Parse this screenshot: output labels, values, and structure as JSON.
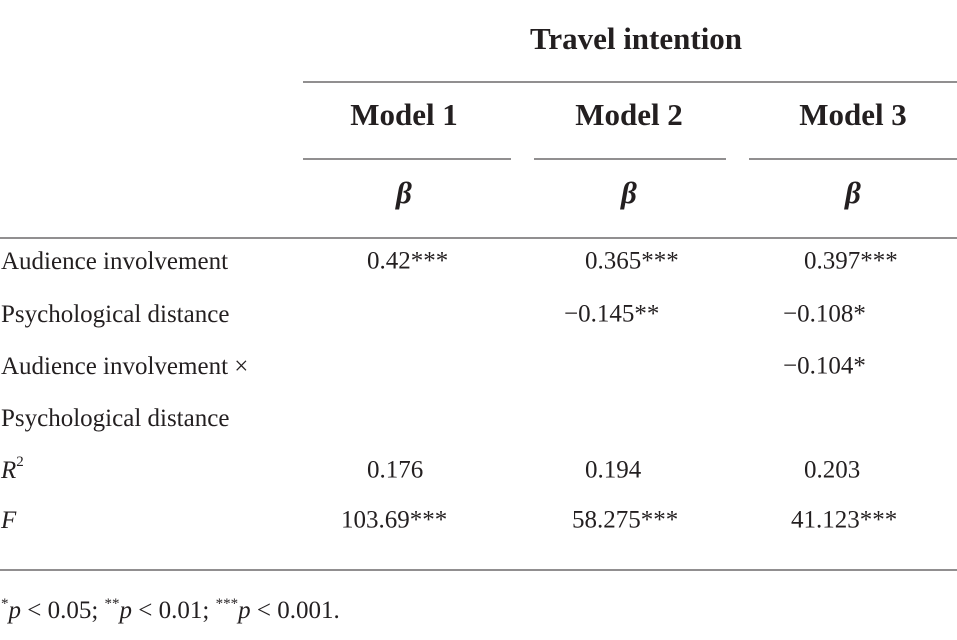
{
  "header": {
    "title": "Travel intention",
    "models": [
      "Model 1",
      "Model 2",
      "Model 3"
    ],
    "stats": [
      "β",
      "β",
      "β"
    ]
  },
  "table": {
    "rows": [
      {
        "label": "Audience involvement",
        "cells": [
          "0.42***",
          "0.365***",
          "0.397***"
        ]
      },
      {
        "label": "Psychological distance",
        "cells": [
          null,
          "−0.145**",
          "−0.108*"
        ]
      },
      {
        "label": "Audience involvement ×",
        "cells": [
          null,
          null,
          "−0.104*"
        ]
      },
      {
        "label": "Psychological distance",
        "cells": [
          null,
          null,
          null
        ]
      },
      {
        "label": "R",
        "label_sup": "2",
        "label_italic": true,
        "cells": [
          "0.176",
          "0.194",
          "0.203"
        ]
      },
      {
        "label": "F",
        "label_italic": true,
        "cells": [
          "103.69***",
          "58.275***",
          "41.123***"
        ]
      }
    ]
  },
  "footnote": [
    {
      "stars": "*",
      "var": "p",
      "rest": " < 0.05; "
    },
    {
      "stars": "**",
      "var": "p",
      "rest": " < 0.01; "
    },
    {
      "stars": "***",
      "var": "p",
      "rest": " < 0.001."
    }
  ]
}
